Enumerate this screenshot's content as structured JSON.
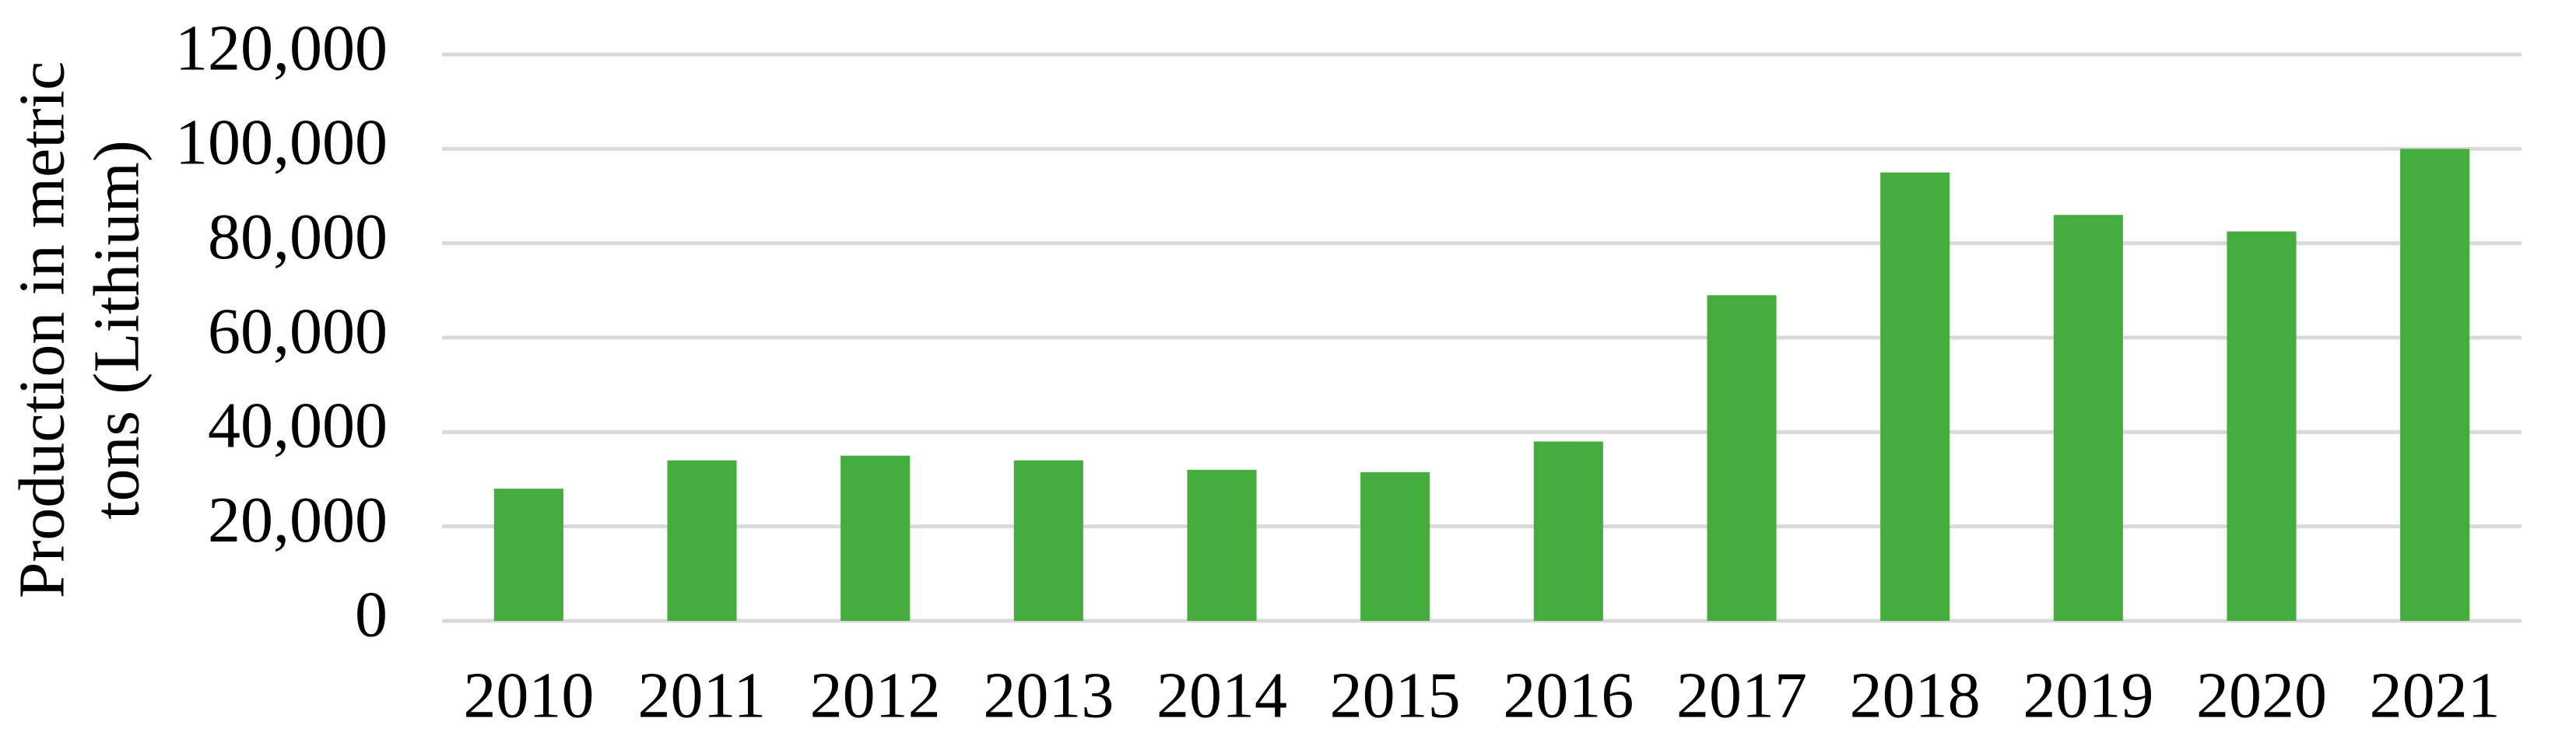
{
  "chart_data": {
    "type": "bar",
    "y_label": [
      "Production in metric",
      "tons (Lithium)"
    ],
    "categories": [
      "2010",
      "2011",
      "2012",
      "2013",
      "2014",
      "2015",
      "2016",
      "2017",
      "2018",
      "2019",
      "2020",
      "2021"
    ],
    "values": [
      28000,
      34000,
      35000,
      34000,
      32000,
      31500,
      38000,
      69000,
      95000,
      86000,
      82500,
      100000
    ],
    "color": "#45ad3d",
    "ylim": [
      0,
      120000
    ],
    "yticks": [
      0,
      {
        "value": 20000,
        "label": "20,000"
      },
      {
        "value": 40000,
        "label": "40,000"
      },
      {
        "value": 60000,
        "label": "60,000"
      },
      {
        "value": 80000,
        "label": "80,000"
      },
      {
        "value": 100000,
        "label": "100,000"
      },
      {
        "value": 120000,
        "label": "120,000"
      }
    ],
    "grid": true
  }
}
